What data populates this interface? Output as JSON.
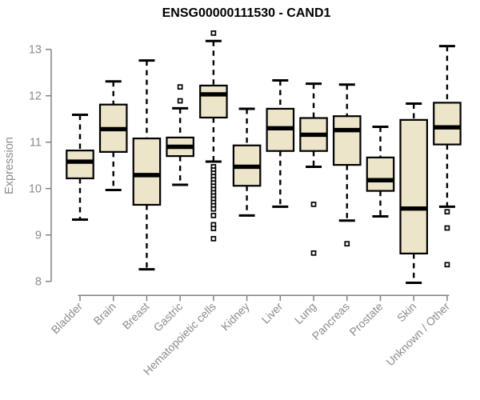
{
  "chart_data": {
    "type": "boxplot",
    "title": "ENSG00000111530 - CAND1",
    "ylabel": "Expression",
    "xlabel": "",
    "ylim": [
      8,
      13
    ],
    "yticks": [
      8,
      9,
      10,
      11,
      12,
      13
    ],
    "grid": false,
    "legend": "none",
    "categories": [
      "Bladder",
      "Brain",
      "Breast",
      "Gastric",
      "Hematopoietic cells",
      "Kidney",
      "Liver",
      "Lung",
      "Pancreas",
      "Prostate",
      "Skin",
      "Unknown / Other"
    ],
    "series": [
      {
        "name": "Bladder",
        "whisker_low": 9.33,
        "q1": 10.22,
        "median": 10.58,
        "q3": 10.82,
        "whisker_high": 11.59,
        "outliers": []
      },
      {
        "name": "Brain",
        "whisker_low": 9.97,
        "q1": 10.79,
        "median": 11.28,
        "q3": 11.81,
        "whisker_high": 12.31,
        "outliers": []
      },
      {
        "name": "Breast",
        "whisker_low": 8.26,
        "q1": 9.65,
        "median": 10.29,
        "q3": 11.08,
        "whisker_high": 12.76,
        "outliers": []
      },
      {
        "name": "Gastric",
        "whisker_low": 10.08,
        "q1": 10.7,
        "median": 10.9,
        "q3": 11.1,
        "whisker_high": 11.73,
        "outliers": [
          12.19,
          11.89
        ]
      },
      {
        "name": "Hematopoietic cells",
        "whisker_low": 10.58,
        "q1": 11.53,
        "median": 12.03,
        "q3": 12.22,
        "whisker_high": 13.18,
        "outliers": [
          13.35,
          10.47,
          10.4,
          10.33,
          10.26,
          10.19,
          10.12,
          10.05,
          9.98,
          9.91,
          9.84,
          9.77,
          9.7,
          9.63,
          9.56,
          9.42,
          9.22,
          9.14,
          8.92
        ]
      },
      {
        "name": "Kidney",
        "whisker_low": 9.42,
        "q1": 10.06,
        "median": 10.47,
        "q3": 10.93,
        "whisker_high": 11.72,
        "outliers": []
      },
      {
        "name": "Liver",
        "whisker_low": 9.61,
        "q1": 10.81,
        "median": 11.3,
        "q3": 11.72,
        "whisker_high": 12.33,
        "outliers": []
      },
      {
        "name": "Lung",
        "whisker_low": 10.47,
        "q1": 10.81,
        "median": 11.16,
        "q3": 11.52,
        "whisker_high": 12.26,
        "outliers": [
          9.66,
          8.61
        ]
      },
      {
        "name": "Pancreas",
        "whisker_low": 9.31,
        "q1": 10.51,
        "median": 11.26,
        "q3": 11.56,
        "whisker_high": 12.24,
        "outliers": [
          8.81
        ]
      },
      {
        "name": "Prostate",
        "whisker_low": 9.4,
        "q1": 9.95,
        "median": 10.18,
        "q3": 10.67,
        "whisker_high": 11.33,
        "outliers": []
      },
      {
        "name": "Skin",
        "whisker_low": 7.97,
        "q1": 8.6,
        "median": 9.57,
        "q3": 11.48,
        "whisker_high": 11.83,
        "outliers": []
      },
      {
        "name": "Unknown / Other",
        "whisker_low": 9.61,
        "q1": 10.95,
        "median": 11.32,
        "q3": 11.85,
        "whisker_high": 13.07,
        "outliers": [
          9.5,
          9.15,
          8.36
        ]
      }
    ],
    "colors": {
      "box_fill": "#ece5c9",
      "box_stroke": "#000000",
      "median": "#000000",
      "whisker": "#000000",
      "outlier": "#000000",
      "axis": "#828282",
      "tick_label": "#8b8b8b",
      "title": "#000000",
      "background": "#ffffff"
    }
  }
}
